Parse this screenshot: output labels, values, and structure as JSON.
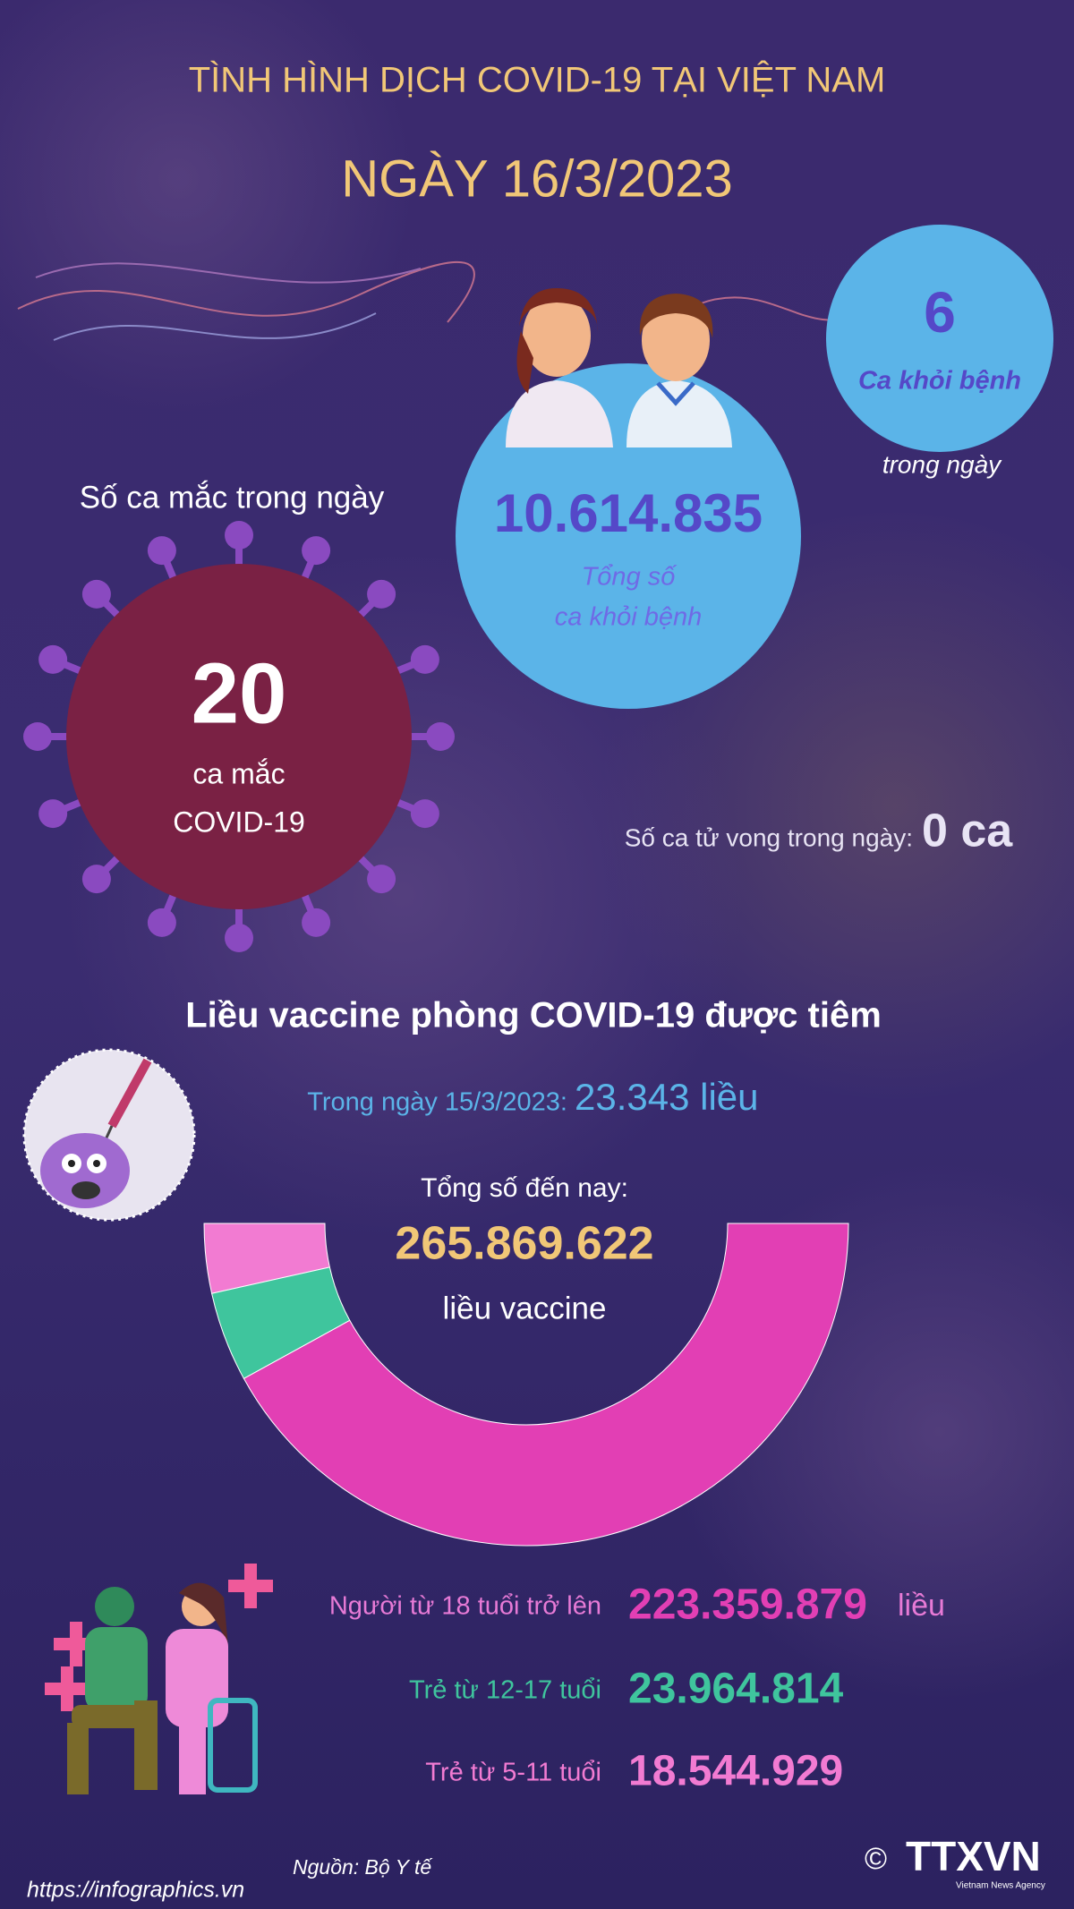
{
  "header": {
    "title": "TÌNH HÌNH DỊCH COVID-19 TẠI VIỆT NAM",
    "date": "NGÀY 16/3/2023"
  },
  "recovered_today": {
    "value": "6",
    "label": "Ca khỏi bệnh",
    "note": "trong ngày"
  },
  "total_recovered": {
    "value": "10.614.835",
    "label_line1": "Tổng số",
    "label_line2": "ca khỏi bệnh"
  },
  "daily_cases": {
    "heading": "Số ca mắc trong ngày",
    "value": "20",
    "unit": "ca mắc",
    "label": "COVID-19"
  },
  "deaths": {
    "label": "Số ca tử vong trong ngày:",
    "value": "0 ca"
  },
  "vaccine": {
    "title": "Liều vaccine phòng COVID-19 được tiêm",
    "daily_label": "Trong ngày 15/3/2023:",
    "daily_value": "23.343 liều",
    "total_label": "Tổng số đến nay:",
    "total_value": "265.869.622",
    "total_unit": "liều vaccine",
    "groups": [
      {
        "name": "Người từ 18 tuổi trở lên",
        "value": "223.359.879",
        "unit": "liều",
        "color": "#e23fb4"
      },
      {
        "name": "Trẻ từ 12-17 tuổi",
        "value": "23.964.814",
        "color": "#3fc59d"
      },
      {
        "name": "Trẻ từ 5-11 tuổi",
        "value": "18.544.929",
        "color": "#f27bd2"
      }
    ]
  },
  "footer": {
    "source": "Nguồn: Bộ Y tế",
    "url": "https://infographics.vn",
    "copyright": "©",
    "logo": "TTXVN",
    "agency": "Vietnam News Agency"
  }
}
